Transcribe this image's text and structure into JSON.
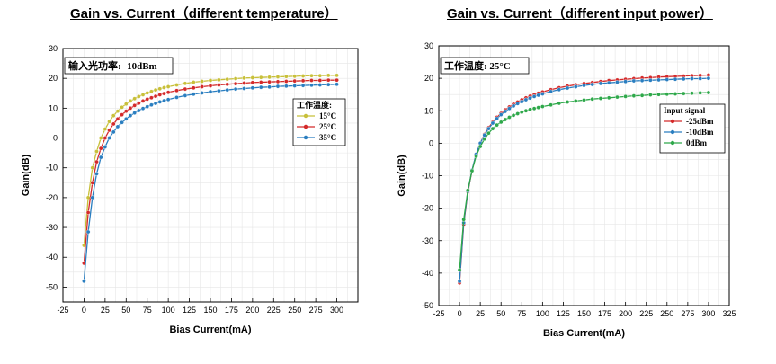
{
  "chart_data": [
    {
      "type": "line",
      "title": "Gain vs. Current（different temperature）",
      "xlabel": "Bias Current(mA)",
      "ylabel": "Gain(dB)",
      "xlim": [
        -25,
        325
      ],
      "ylim": [
        -55,
        30
      ],
      "xticks": [
        -25,
        0,
        25,
        50,
        75,
        100,
        125,
        150,
        175,
        200,
        225,
        250,
        275,
        300
      ],
      "yticks": [
        -50,
        -40,
        -30,
        -20,
        -10,
        0,
        10,
        20,
        30
      ],
      "grid": true,
      "legend_position": "right",
      "legend_title": "工作温度:",
      "annotation": "输入光功率: -10dBm",
      "x": [
        0,
        5,
        10,
        15,
        20,
        25,
        30,
        35,
        40,
        45,
        50,
        55,
        60,
        65,
        70,
        75,
        80,
        85,
        90,
        95,
        100,
        110,
        120,
        130,
        140,
        150,
        160,
        170,
        180,
        190,
        200,
        210,
        220,
        230,
        240,
        250,
        260,
        270,
        280,
        290,
        300
      ],
      "series": [
        {
          "name": "15°C",
          "color": "#c8c03a",
          "values": [
            -36,
            -20,
            -10,
            -4.5,
            0,
            3,
            5.5,
            7.5,
            9,
            10.3,
            11.4,
            12.4,
            13.2,
            13.9,
            14.5,
            15.1,
            15.6,
            16.1,
            16.5,
            16.9,
            17.2,
            17.8,
            18.3,
            18.7,
            19.0,
            19.3,
            19.5,
            19.7,
            19.9,
            20.1,
            20.2,
            20.3,
            20.4,
            20.5,
            20.6,
            20.7,
            20.8,
            20.9,
            20.9,
            21.0,
            21.0
          ]
        },
        {
          "name": "25°C",
          "color": "#d42a2a",
          "values": [
            -42,
            -25,
            -15,
            -8,
            -3.5,
            0,
            2.6,
            4.7,
            6.4,
            7.8,
            9.0,
            10.0,
            10.9,
            11.7,
            12.4,
            13.0,
            13.5,
            14.0,
            14.5,
            14.9,
            15.3,
            15.9,
            16.4,
            16.8,
            17.2,
            17.5,
            17.8,
            18.0,
            18.2,
            18.4,
            18.6,
            18.7,
            18.8,
            18.9,
            19.0,
            19.1,
            19.2,
            19.3,
            19.3,
            19.4,
            19.4
          ]
        },
        {
          "name": "35°C",
          "color": "#2a7ec0",
          "values": [
            -48,
            -31.5,
            -20,
            -12,
            -6.5,
            -3,
            0,
            2,
            3.8,
            5.2,
            6.4,
            7.5,
            8.4,
            9.2,
            9.9,
            10.5,
            11.1,
            11.6,
            12.1,
            12.5,
            12.9,
            13.6,
            14.2,
            14.7,
            15.1,
            15.5,
            15.8,
            16.1,
            16.4,
            16.6,
            16.8,
            17.0,
            17.1,
            17.3,
            17.4,
            17.5,
            17.6,
            17.7,
            17.8,
            17.9,
            18.0
          ]
        }
      ]
    },
    {
      "type": "line",
      "title": "Gain vs. Current（different input power）",
      "xlabel": "Bias Current(mA)",
      "ylabel": "Gain(dB)",
      "xlim": [
        -25,
        325
      ],
      "ylim": [
        -50,
        30
      ],
      "xticks": [
        -25,
        0,
        25,
        50,
        75,
        100,
        125,
        150,
        175,
        200,
        225,
        250,
        275,
        300,
        325
      ],
      "yticks": [
        -50,
        -40,
        -30,
        -20,
        -10,
        0,
        10,
        20,
        30
      ],
      "grid": true,
      "legend_position": "right",
      "legend_title": "Input signal",
      "annotation": "工作温度: 25°C",
      "x": [
        0,
        5,
        10,
        15,
        20,
        25,
        30,
        35,
        40,
        45,
        50,
        55,
        60,
        65,
        70,
        75,
        80,
        85,
        90,
        95,
        100,
        110,
        120,
        130,
        140,
        150,
        160,
        170,
        180,
        190,
        200,
        210,
        220,
        230,
        240,
        250,
        260,
        270,
        280,
        290,
        300
      ],
      "series": [
        {
          "name": "-25dBm",
          "color": "#d42a2a",
          "values": [
            -43,
            -25,
            -15,
            -8.5,
            -3.5,
            0,
            2.7,
            4.8,
            6.5,
            8.0,
            9.2,
            10.3,
            11.2,
            12.0,
            12.7,
            13.4,
            14.0,
            14.5,
            15.0,
            15.4,
            15.8,
            16.5,
            17.1,
            17.6,
            18.0,
            18.4,
            18.7,
            19.0,
            19.3,
            19.5,
            19.7,
            19.9,
            20.1,
            20.2,
            20.4,
            20.5,
            20.6,
            20.7,
            20.8,
            20.9,
            21.0
          ]
        },
        {
          "name": "-10dBm",
          "color": "#2a7ec0",
          "values": [
            -42.5,
            -24.5,
            -14.8,
            -8.3,
            -3.4,
            0,
            2.5,
            4.5,
            6.2,
            7.6,
            8.8,
            9.8,
            10.7,
            11.5,
            12.2,
            12.8,
            13.4,
            13.9,
            14.4,
            14.8,
            15.2,
            15.9,
            16.5,
            17.0,
            17.4,
            17.8,
            18.1,
            18.4,
            18.6,
            18.8,
            19.0,
            19.2,
            19.3,
            19.4,
            19.5,
            19.6,
            19.7,
            19.8,
            19.9,
            19.9,
            20.0
          ]
        },
        {
          "name": "0dBm",
          "color": "#2ea84a",
          "values": [
            -39,
            -23.5,
            -14.5,
            -8.5,
            -4,
            -1,
            1.3,
            3.1,
            4.5,
            5.6,
            6.5,
            7.3,
            8.0,
            8.6,
            9.1,
            9.6,
            10.0,
            10.4,
            10.7,
            11.0,
            11.3,
            11.8,
            12.3,
            12.7,
            13.0,
            13.3,
            13.6,
            13.8,
            14.0,
            14.2,
            14.4,
            14.6,
            14.7,
            14.9,
            15.0,
            15.1,
            15.2,
            15.3,
            15.4,
            15.5,
            15.6
          ]
        }
      ]
    }
  ]
}
